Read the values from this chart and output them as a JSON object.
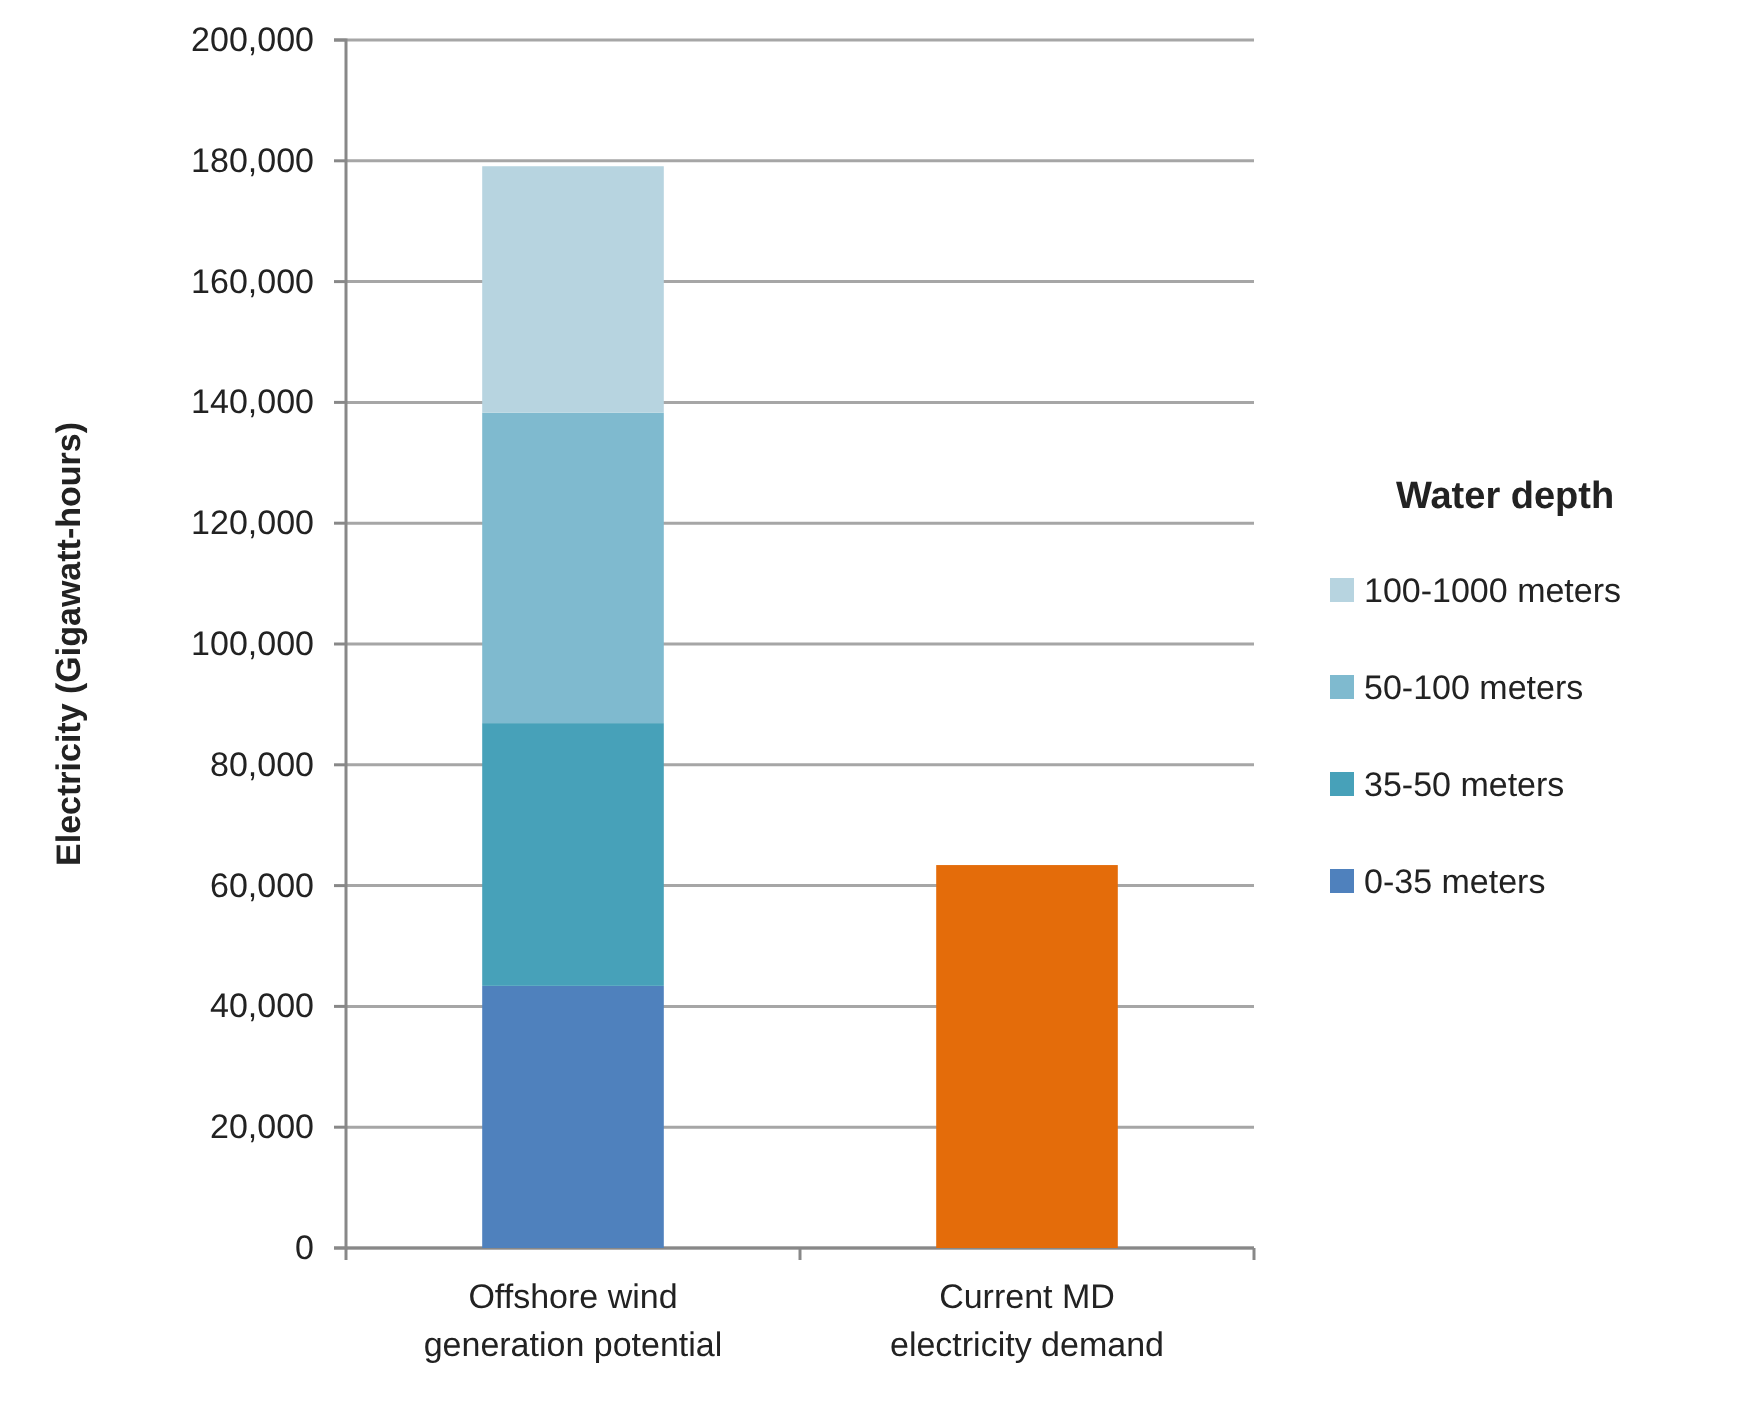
{
  "chart_data": {
    "type": "bar",
    "stacked": true,
    "ylabel": "Electricity (Gigawatt-hours)",
    "legend_title": "Water depth",
    "legend": "right",
    "categories": [
      "Offshore wind generation potential",
      "Current MD electricity demand"
    ],
    "series": [
      {
        "name": "0-35 meters",
        "color": "#4f81bd",
        "values": [
          43400,
          null
        ]
      },
      {
        "name": "35-50 meters",
        "color": "#47a1b9",
        "values": [
          43500,
          null
        ]
      },
      {
        "name": "50-100 meters",
        "color": "#7fbacf",
        "values": [
          51400,
          null
        ]
      },
      {
        "name": "100-1000 meters",
        "color": "#b7d4e0",
        "values": [
          40800,
          null
        ]
      },
      {
        "color": "#e46c0a",
        "values": [
          null,
          63400
        ]
      }
    ],
    "ylim": [
      0,
      200000
    ],
    "yticks": [
      0,
      {
        "value": 20000,
        "label": "20,000"
      },
      {
        "value": 40000,
        "label": "40,000"
      },
      {
        "value": 60000,
        "label": "60,000"
      },
      {
        "value": 80000,
        "label": "80,000"
      },
      {
        "value": 100000,
        "label": "100,000"
      },
      {
        "value": 120000,
        "label": "120,000"
      },
      {
        "value": 140000,
        "label": "140,000"
      },
      {
        "value": 160000,
        "label": "160,000"
      },
      {
        "value": 180000,
        "label": "180,000"
      },
      {
        "value": 200000,
        "label": "200,000"
      }
    ],
    "grid": "y"
  }
}
